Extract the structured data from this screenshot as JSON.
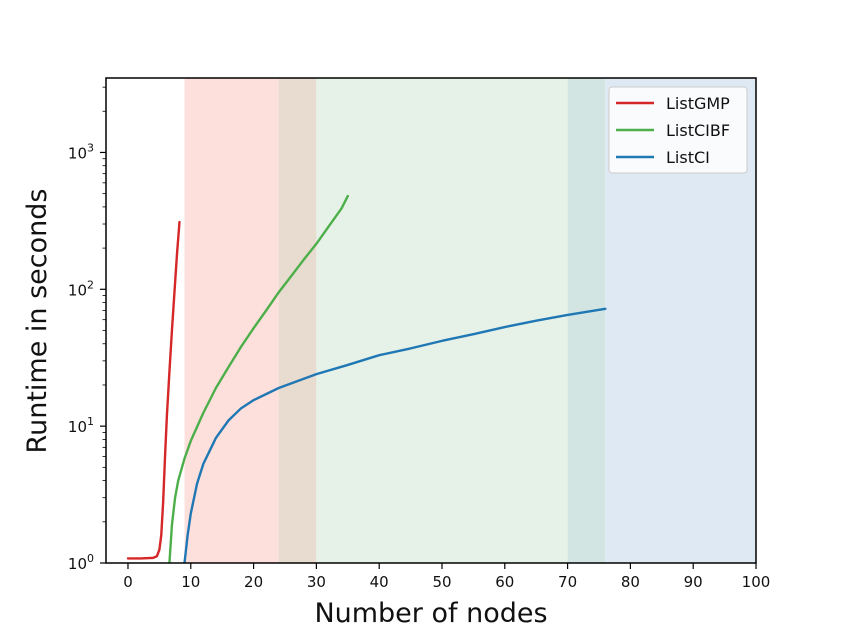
{
  "chart_data": {
    "type": "line",
    "title": "",
    "xlabel": "Number of nodes",
    "ylabel": "Runtime in seconds",
    "xlim": [
      -3.5,
      100
    ],
    "ylim": [
      1,
      3500
    ],
    "yscale": "log",
    "x_ticks": [
      0,
      10,
      20,
      30,
      40,
      50,
      60,
      70,
      80,
      90,
      100
    ],
    "y_ticks": [
      {
        "value": 1,
        "base": "10",
        "exp": "0"
      },
      {
        "value": 10,
        "base": "10",
        "exp": "1"
      },
      {
        "value": 100,
        "base": "10",
        "exp": "2"
      },
      {
        "value": 1000,
        "base": "10",
        "exp": "3"
      }
    ],
    "grid": false,
    "legend_position": "top-right",
    "shaded_regions": [
      {
        "x_range": [
          9,
          24
        ],
        "color": "#fde0dc"
      },
      {
        "x_range": [
          24,
          30
        ],
        "color": "#e8dbd0"
      },
      {
        "x_range": [
          30,
          70
        ],
        "color": "#e6f2e8"
      },
      {
        "x_range": [
          70,
          76
        ],
        "color": "#d2e5e3"
      },
      {
        "x_range": [
          76,
          100
        ],
        "color": "#dfe9f3"
      }
    ],
    "series": [
      {
        "name": "ListGMP",
        "color": "#d62728",
        "points": [
          [
            0,
            1.08
          ],
          [
            2,
            1.08
          ],
          [
            4,
            1.09
          ],
          [
            4.6,
            1.12
          ],
          [
            5,
            1.25
          ],
          [
            5.3,
            1.6
          ],
          [
            5.6,
            2.8
          ],
          [
            5.9,
            6
          ],
          [
            6.2,
            12
          ],
          [
            6.6,
            25
          ],
          [
            7.0,
            50
          ],
          [
            7.4,
            95
          ],
          [
            7.8,
            180
          ],
          [
            8.2,
            310
          ]
        ]
      },
      {
        "name": "ListCIBF",
        "color": "#4daf4a",
        "points": [
          [
            6.6,
            1.0
          ],
          [
            7,
            1.9
          ],
          [
            7.5,
            3.0
          ],
          [
            8,
            4.0
          ],
          [
            9,
            5.8
          ],
          [
            10,
            7.8
          ],
          [
            12,
            12.5
          ],
          [
            14,
            19
          ],
          [
            16,
            27
          ],
          [
            18,
            38
          ],
          [
            20,
            52
          ],
          [
            22,
            70
          ],
          [
            24,
            95
          ],
          [
            26,
            125
          ],
          [
            28,
            165
          ],
          [
            30,
            215
          ],
          [
            32,
            290
          ],
          [
            34,
            390
          ],
          [
            35,
            480
          ]
        ]
      },
      {
        "name": "ListCI",
        "color": "#1f77b4",
        "points": [
          [
            9.0,
            1.0
          ],
          [
            9.5,
            1.6
          ],
          [
            10,
            2.3
          ],
          [
            11,
            3.8
          ],
          [
            12,
            5.3
          ],
          [
            14,
            8.2
          ],
          [
            16,
            11
          ],
          [
            18,
            13.5
          ],
          [
            20,
            15.5
          ],
          [
            24,
            19
          ],
          [
            30,
            24
          ],
          [
            35,
            28
          ],
          [
            40,
            33
          ],
          [
            45,
            37
          ],
          [
            50,
            42
          ],
          [
            55,
            47
          ],
          [
            60,
            53
          ],
          [
            65,
            59
          ],
          [
            70,
            65
          ],
          [
            76,
            72
          ]
        ]
      }
    ]
  }
}
